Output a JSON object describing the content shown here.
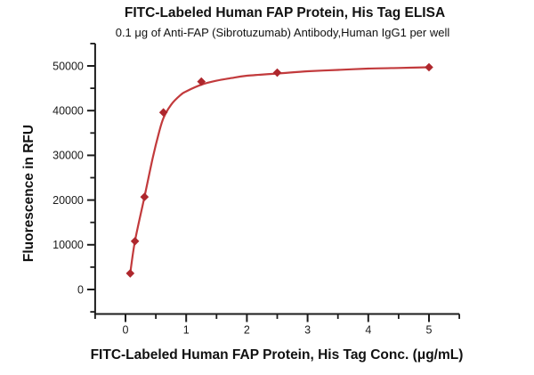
{
  "chart_data": {
    "type": "scatter",
    "title": "FITC-Labeled Human FAP Protein, His Tag ELISA",
    "subtitle": "0.1 μg of Anti-FAP (Sibrotuzumab) Antibody,Human IgG1 per well",
    "xlabel": "FITC-Labeled Human FAP Protein, His Tag Conc. (μg/mL)",
    "ylabel": "Fluorescence in RFU",
    "x": [
      0.078,
      0.156,
      0.313,
      0.625,
      1.25,
      2.5,
      5
    ],
    "y": [
      3600,
      10800,
      20700,
      39600,
      46500,
      48500,
      49700
    ],
    "fit_curve": [
      [
        0.078,
        3600
      ],
      [
        0.156,
        10800
      ],
      [
        0.313,
        20700
      ],
      [
        0.45,
        29500
      ],
      [
        0.55,
        35000
      ],
      [
        0.625,
        38300
      ],
      [
        0.75,
        41300
      ],
      [
        0.9,
        43400
      ],
      [
        1.0,
        44300
      ],
      [
        1.25,
        45800
      ],
      [
        1.5,
        46700
      ],
      [
        1.75,
        47300
      ],
      [
        2.0,
        47800
      ],
      [
        2.5,
        48300
      ],
      [
        3.0,
        48800
      ],
      [
        3.5,
        49100
      ],
      [
        4.0,
        49400
      ],
      [
        4.5,
        49550
      ],
      [
        5.0,
        49700
      ]
    ],
    "xlim": [
      -0.5,
      5.5
    ],
    "ylim": [
      -5000,
      55000
    ],
    "x_major_ticks": [
      0,
      1,
      2,
      3,
      4,
      5
    ],
    "x_minor_step": 0.5,
    "y_major_ticks": [
      0,
      10000,
      20000,
      30000,
      40000,
      50000
    ],
    "y_minor_step": 5000,
    "grid": false,
    "legend": null,
    "marker": "diamond",
    "line_color": "#c23a3c",
    "marker_color": "#ae272d",
    "axis_color": "#1c1c1c",
    "tick_label_color": "#1a1a1a"
  }
}
